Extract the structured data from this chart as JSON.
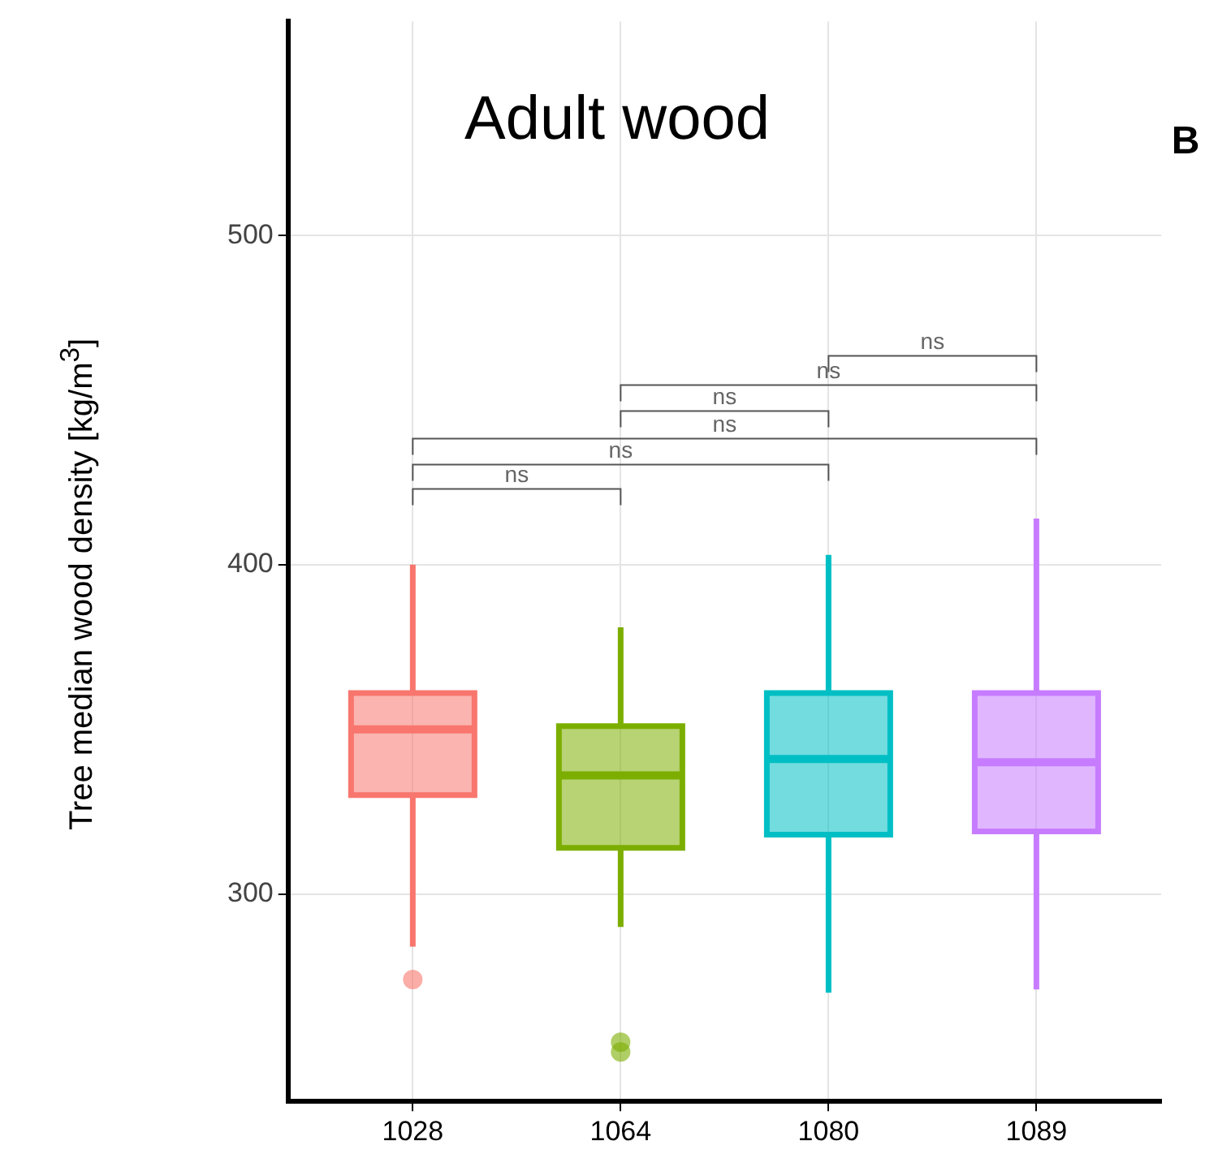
{
  "chart_data": {
    "type": "box",
    "title": "Adult wood",
    "ylabel": "Tree median wood density [kg/m$^{3}$]",
    "categories": [
      "1028",
      "1064",
      "1080",
      "1089"
    ],
    "colors": [
      "#f8766d",
      "#7cae00",
      "#00bfc4",
      "#c77cff"
    ],
    "boxes": [
      {
        "low": 284,
        "q1": 330,
        "median": 350,
        "q3": 361,
        "high": 400,
        "outliers": [
          274
        ]
      },
      {
        "low": 290,
        "q1": 314,
        "median": 336,
        "q3": 351,
        "high": 381,
        "outliers": [
          255,
          252
        ]
      },
      {
        "low": 270,
        "q1": 318,
        "median": 341,
        "q3": 361,
        "high": 403
      },
      {
        "low": 271,
        "q1": 319,
        "median": 340,
        "q3": 361,
        "high": 414
      }
    ],
    "ylim": [
      237,
      565
    ],
    "yticks": [
      300,
      400,
      500
    ],
    "grid": true,
    "annotations": [
      "ns",
      "ns",
      "ns",
      "ns",
      "ns",
      "ns",
      "B"
    ]
  }
}
